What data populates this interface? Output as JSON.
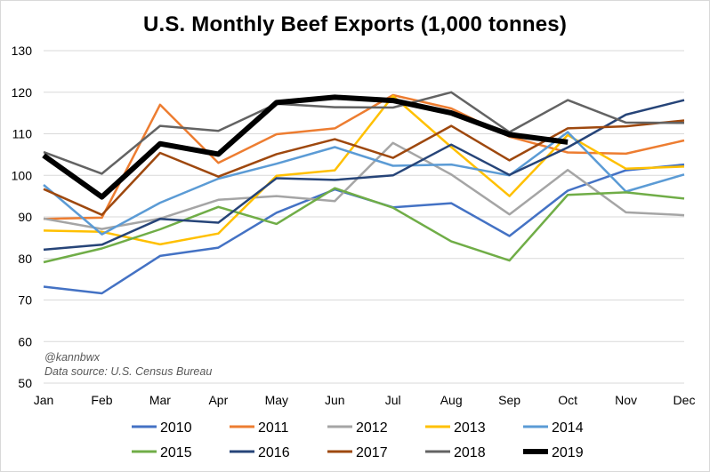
{
  "chart_data": {
    "type": "line",
    "title": "U.S. Monthly Beef Exports (1,000 tonnes)",
    "xlabel": "",
    "ylabel": "",
    "ylim": [
      50,
      130
    ],
    "yticks": [
      50,
      60,
      70,
      80,
      90,
      100,
      110,
      120,
      130
    ],
    "categories": [
      "Jan",
      "Feb",
      "Mar",
      "Apr",
      "May",
      "Jun",
      "Jul",
      "Aug",
      "Sep",
      "Oct",
      "Nov",
      "Dec"
    ],
    "grid": true,
    "legend_position": "bottom",
    "annotations": [
      "@kannbwx",
      "Data source: U.S. Census Bureau"
    ],
    "series": [
      {
        "name": "2010",
        "color": "#4472c4",
        "width": 2.5,
        "values": [
          73.2,
          71.6,
          80.6,
          82.6,
          91.0,
          96.6,
          92.3,
          93.3,
          85.4,
          96.3,
          101.2,
          102.6
        ]
      },
      {
        "name": "2011",
        "color": "#ed7d31",
        "width": 2.5,
        "values": [
          89.5,
          89.8,
          117.0,
          103.0,
          109.9,
          111.3,
          119.3,
          116.1,
          109.3,
          105.5,
          105.2,
          108.4
        ]
      },
      {
        "name": "2012",
        "color": "#a5a5a5",
        "width": 2.5,
        "values": [
          89.6,
          87.1,
          89.6,
          94.1,
          95.0,
          93.8,
          107.8,
          100.2,
          90.6,
          101.3,
          91.1,
          90.4
        ]
      },
      {
        "name": "2013",
        "color": "#ffc000",
        "width": 2.5,
        "values": [
          86.7,
          86.4,
          83.4,
          86.0,
          99.9,
          101.2,
          119.1,
          106.8,
          95.0,
          109.7,
          101.6,
          102.1
        ]
      },
      {
        "name": "2014",
        "color": "#5b9bd5",
        "width": 2.5,
        "values": [
          97.7,
          85.8,
          93.4,
          99.2,
          102.8,
          106.8,
          102.3,
          102.6,
          100.0,
          110.4,
          96.1,
          100.2
        ]
      },
      {
        "name": "2015",
        "color": "#70ad47",
        "width": 2.5,
        "values": [
          79.1,
          82.4,
          87.0,
          92.4,
          88.3,
          96.9,
          92.2,
          84.1,
          79.5,
          95.3,
          95.9,
          94.4
        ]
      },
      {
        "name": "2016",
        "color": "#264478",
        "width": 2.5,
        "values": [
          82.1,
          83.3,
          89.5,
          88.6,
          99.3,
          98.9,
          100.0,
          107.4,
          100.1,
          106.7,
          114.6,
          118.1
        ]
      },
      {
        "name": "2017",
        "color": "#9e480e",
        "width": 2.5,
        "values": [
          96.7,
          90.5,
          105.4,
          99.7,
          105.1,
          108.7,
          104.2,
          111.9,
          103.6,
          111.3,
          111.8,
          113.2
        ]
      },
      {
        "name": "2018",
        "color": "#636363",
        "width": 2.5,
        "values": [
          105.6,
          100.4,
          111.9,
          110.7,
          117.2,
          116.4,
          116.3,
          120.0,
          110.4,
          118.1,
          112.7,
          112.6
        ]
      },
      {
        "name": "2019",
        "color": "#000000",
        "width": 6,
        "values": [
          104.8,
          94.8,
          107.6,
          105.1,
          117.5,
          118.8,
          118.0,
          115.0,
          109.8,
          108.0,
          null,
          null
        ]
      }
    ]
  }
}
